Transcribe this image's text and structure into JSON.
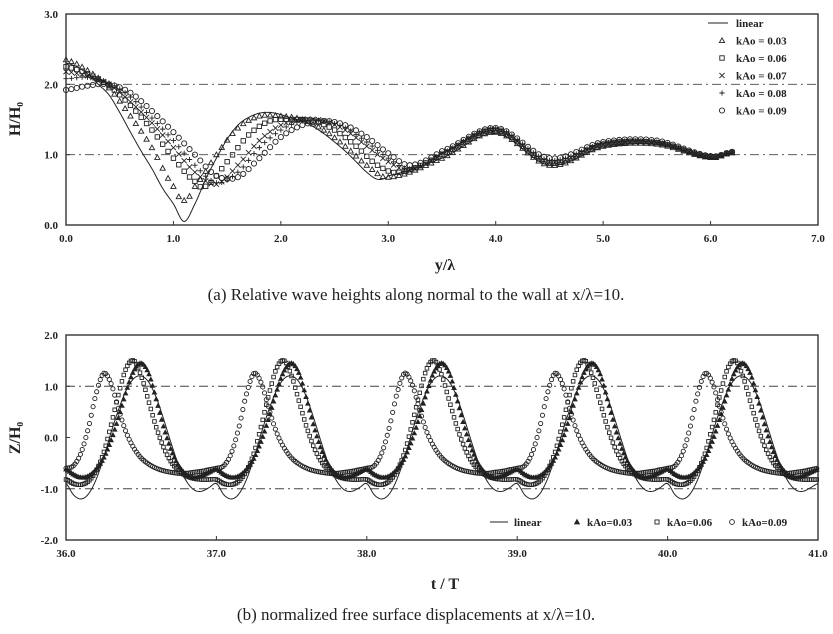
{
  "chart_data": [
    {
      "type": "scatter",
      "panel_id": "a",
      "xlabel": "y/λ",
      "ylabel": "H/H₀",
      "xlim": [
        0,
        7
      ],
      "ylim": [
        0,
        3
      ],
      "xticks": [
        "0.0",
        "1.0",
        "2.0",
        "3.0",
        "4.0",
        "5.0",
        "6.0",
        "7.0"
      ],
      "yticks": [
        "0.0",
        "1.0",
        "2.0",
        "3.0"
      ],
      "grid_y": [
        1,
        2
      ],
      "legend_position": "top-right",
      "caption": "(a) Relative wave heights along normal to the wall at x/λ=10.",
      "series": [
        {
          "name": "linear",
          "marker": "line",
          "x": [
            0,
            0.1,
            0.2,
            0.3,
            0.4,
            0.5,
            0.6,
            0.7,
            0.8,
            0.9,
            1.0,
            1.1,
            1.2,
            1.3,
            1.4,
            1.5,
            1.6,
            1.7,
            1.8,
            1.9,
            2.0,
            2.1,
            2.2,
            2.3,
            2.4,
            2.5,
            2.6,
            2.7,
            2.8,
            2.9,
            3.0,
            3.5,
            4.0,
            4.5,
            5.0,
            5.5,
            6.0,
            6.2
          ],
          "y": [
            2.3,
            2.25,
            2.15,
            2.0,
            1.85,
            1.6,
            1.32,
            1.05,
            0.8,
            0.52,
            0.3,
            0.05,
            0.3,
            0.65,
            0.95,
            1.22,
            1.42,
            1.53,
            1.59,
            1.6,
            1.57,
            1.52,
            1.48,
            1.4,
            1.3,
            1.18,
            1.05,
            0.9,
            0.75,
            0.65,
            0.7,
            0.95,
            1.3,
            0.85,
            1.1,
            1.15,
            0.95,
            1.02
          ]
        },
        {
          "name": "kAo = 0.03",
          "marker": "triangle",
          "x": [
            0,
            0.2,
            0.4,
            0.6,
            0.8,
            1.0,
            1.1,
            1.2,
            1.4,
            1.6,
            1.8,
            2.0,
            2.2,
            2.4,
            2.6,
            2.8,
            3.0,
            3.5,
            4.0,
            4.5,
            5.0,
            5.5,
            6.0,
            6.2
          ],
          "y": [
            2.35,
            2.2,
            1.95,
            1.55,
            1.1,
            0.55,
            0.35,
            0.55,
            1.0,
            1.38,
            1.55,
            1.55,
            1.5,
            1.35,
            1.12,
            0.85,
            0.68,
            0.95,
            1.32,
            0.85,
            1.12,
            1.15,
            0.96,
            1.03
          ]
        },
        {
          "name": "kAo = 0.06",
          "marker": "square",
          "x": [
            0,
            0.2,
            0.4,
            0.6,
            0.8,
            1.0,
            1.2,
            1.3,
            1.5,
            1.7,
            1.9,
            2.1,
            2.3,
            2.5,
            2.7,
            2.9,
            3.1,
            3.5,
            4.0,
            4.5,
            5.0,
            5.5,
            6.0,
            6.2
          ],
          "y": [
            2.25,
            2.15,
            1.98,
            1.7,
            1.35,
            0.95,
            0.62,
            0.55,
            0.9,
            1.28,
            1.48,
            1.5,
            1.48,
            1.35,
            1.12,
            0.85,
            0.75,
            1.0,
            1.35,
            0.88,
            1.15,
            1.17,
            0.97,
            1.03
          ]
        },
        {
          "name": "kAo = 0.07",
          "marker": "x",
          "x": [
            0,
            0.2,
            0.4,
            0.6,
            0.8,
            1.0,
            1.2,
            1.4,
            1.6,
            1.8,
            2.0,
            2.2,
            2.4,
            2.6,
            2.8,
            3.0,
            3.2,
            3.5,
            4.0,
            4.5,
            5.0,
            5.5,
            6.0,
            6.2
          ],
          "y": [
            2.18,
            2.12,
            2.0,
            1.75,
            1.45,
            1.1,
            0.75,
            0.58,
            0.85,
            1.2,
            1.42,
            1.5,
            1.48,
            1.35,
            1.12,
            0.9,
            0.78,
            1.02,
            1.36,
            0.9,
            1.15,
            1.17,
            0.97,
            1.03
          ]
        },
        {
          "name": "kAo = 0.08",
          "marker": "plus",
          "x": [
            0,
            0.2,
            0.4,
            0.6,
            0.8,
            1.0,
            1.2,
            1.4,
            1.6,
            1.8,
            2.0,
            2.2,
            2.4,
            2.6,
            2.8,
            3.0,
            3.2,
            3.5,
            4.0,
            4.5,
            5.0,
            5.5,
            6.0,
            6.2
          ],
          "y": [
            2.08,
            2.1,
            2.02,
            1.82,
            1.52,
            1.2,
            0.85,
            0.6,
            0.75,
            1.1,
            1.35,
            1.48,
            1.48,
            1.38,
            1.18,
            0.95,
            0.8,
            1.02,
            1.37,
            0.92,
            1.16,
            1.18,
            0.98,
            1.03
          ]
        },
        {
          "name": "kAo = 0.09",
          "marker": "circle",
          "x": [
            0,
            0.2,
            0.4,
            0.6,
            0.8,
            1.0,
            1.2,
            1.4,
            1.6,
            1.8,
            2.0,
            2.2,
            2.4,
            2.6,
            2.8,
            3.0,
            3.2,
            3.5,
            4.0,
            4.5,
            5.0,
            5.5,
            6.0,
            6.2
          ],
          "y": [
            1.92,
            1.98,
            2.0,
            1.88,
            1.62,
            1.32,
            1.0,
            0.7,
            0.68,
            0.95,
            1.25,
            1.42,
            1.48,
            1.42,
            1.25,
            1.02,
            0.85,
            1.05,
            1.38,
            0.95,
            1.18,
            1.2,
            0.98,
            1.04
          ]
        }
      ]
    },
    {
      "type": "scatter",
      "panel_id": "b",
      "xlabel": "t / T",
      "ylabel": "Z/H₀",
      "xlim": [
        36,
        41
      ],
      "ylim": [
        -2,
        2
      ],
      "xticks": [
        "36.0",
        "37.0",
        "38.0",
        "39.0",
        "40.0",
        "41.0"
      ],
      "yticks": [
        "-2.0",
        "-1.0",
        "0.0",
        "1.0",
        "2.0"
      ],
      "grid_y": [
        -1,
        1
      ],
      "legend_position": "bottom-right",
      "caption": "(b) normalized free surface displacements at x/λ=10.",
      "series": [
        {
          "name": "linear",
          "marker": "line",
          "x": [
            0,
            0.05,
            0.1,
            0.15,
            0.2,
            0.25,
            0.3,
            0.35,
            0.4,
            0.45,
            0.5,
            0.55,
            0.6,
            0.65,
            0.7,
            0.75,
            0.8,
            0.85,
            0.9,
            0.95,
            1.0
          ],
          "y": [
            -0.9,
            -1.12,
            -1.2,
            -1.1,
            -0.82,
            -0.4,
            0.1,
            0.55,
            0.92,
            1.15,
            1.2,
            1.08,
            0.78,
            0.35,
            -0.12,
            -0.55,
            -0.85,
            -1.02,
            -1.05,
            -0.98,
            -0.9
          ]
        },
        {
          "name": "kAo=0.03",
          "marker": "triangle",
          "x": [
            0,
            0.05,
            0.1,
            0.15,
            0.2,
            0.25,
            0.3,
            0.35,
            0.4,
            0.45,
            0.5,
            0.55,
            0.6,
            0.65,
            0.7,
            0.75,
            0.8,
            0.85,
            0.9,
            0.95,
            1.0
          ],
          "y": [
            -0.62,
            -0.72,
            -0.78,
            -0.75,
            -0.62,
            -0.4,
            -0.05,
            0.4,
            0.9,
            1.3,
            1.45,
            1.25,
            0.75,
            0.2,
            -0.25,
            -0.55,
            -0.72,
            -0.78,
            -0.75,
            -0.68,
            -0.62
          ]
        },
        {
          "name": "kAo=0.06",
          "marker": "square",
          "x": [
            0,
            0.05,
            0.1,
            0.15,
            0.2,
            0.25,
            0.3,
            0.35,
            0.4,
            0.45,
            0.5,
            0.55,
            0.6,
            0.65,
            0.7,
            0.75,
            0.8,
            0.85,
            0.9,
            0.95,
            1.0
          ],
          "y": [
            -0.82,
            -0.9,
            -0.92,
            -0.85,
            -0.65,
            -0.3,
            0.25,
            0.85,
            1.35,
            1.5,
            1.2,
            0.7,
            0.2,
            -0.2,
            -0.48,
            -0.65,
            -0.75,
            -0.8,
            -0.82,
            -0.82,
            -0.82
          ]
        },
        {
          "name": "kAo=0.09",
          "marker": "circle",
          "x": [
            0,
            0.05,
            0.1,
            0.15,
            0.2,
            0.25,
            0.3,
            0.35,
            0.4,
            0.45,
            0.5,
            0.55,
            0.6,
            0.65,
            0.7,
            0.75,
            0.8,
            0.85,
            0.9,
            0.95,
            1.0
          ],
          "y": [
            -0.6,
            -0.55,
            -0.3,
            0.2,
            0.85,
            1.25,
            1.05,
            0.55,
            0.1,
            -0.2,
            -0.4,
            -0.52,
            -0.6,
            -0.65,
            -0.68,
            -0.7,
            -0.7,
            -0.68,
            -0.66,
            -0.63,
            -0.6
          ]
        }
      ],
      "periodic": true
    }
  ]
}
